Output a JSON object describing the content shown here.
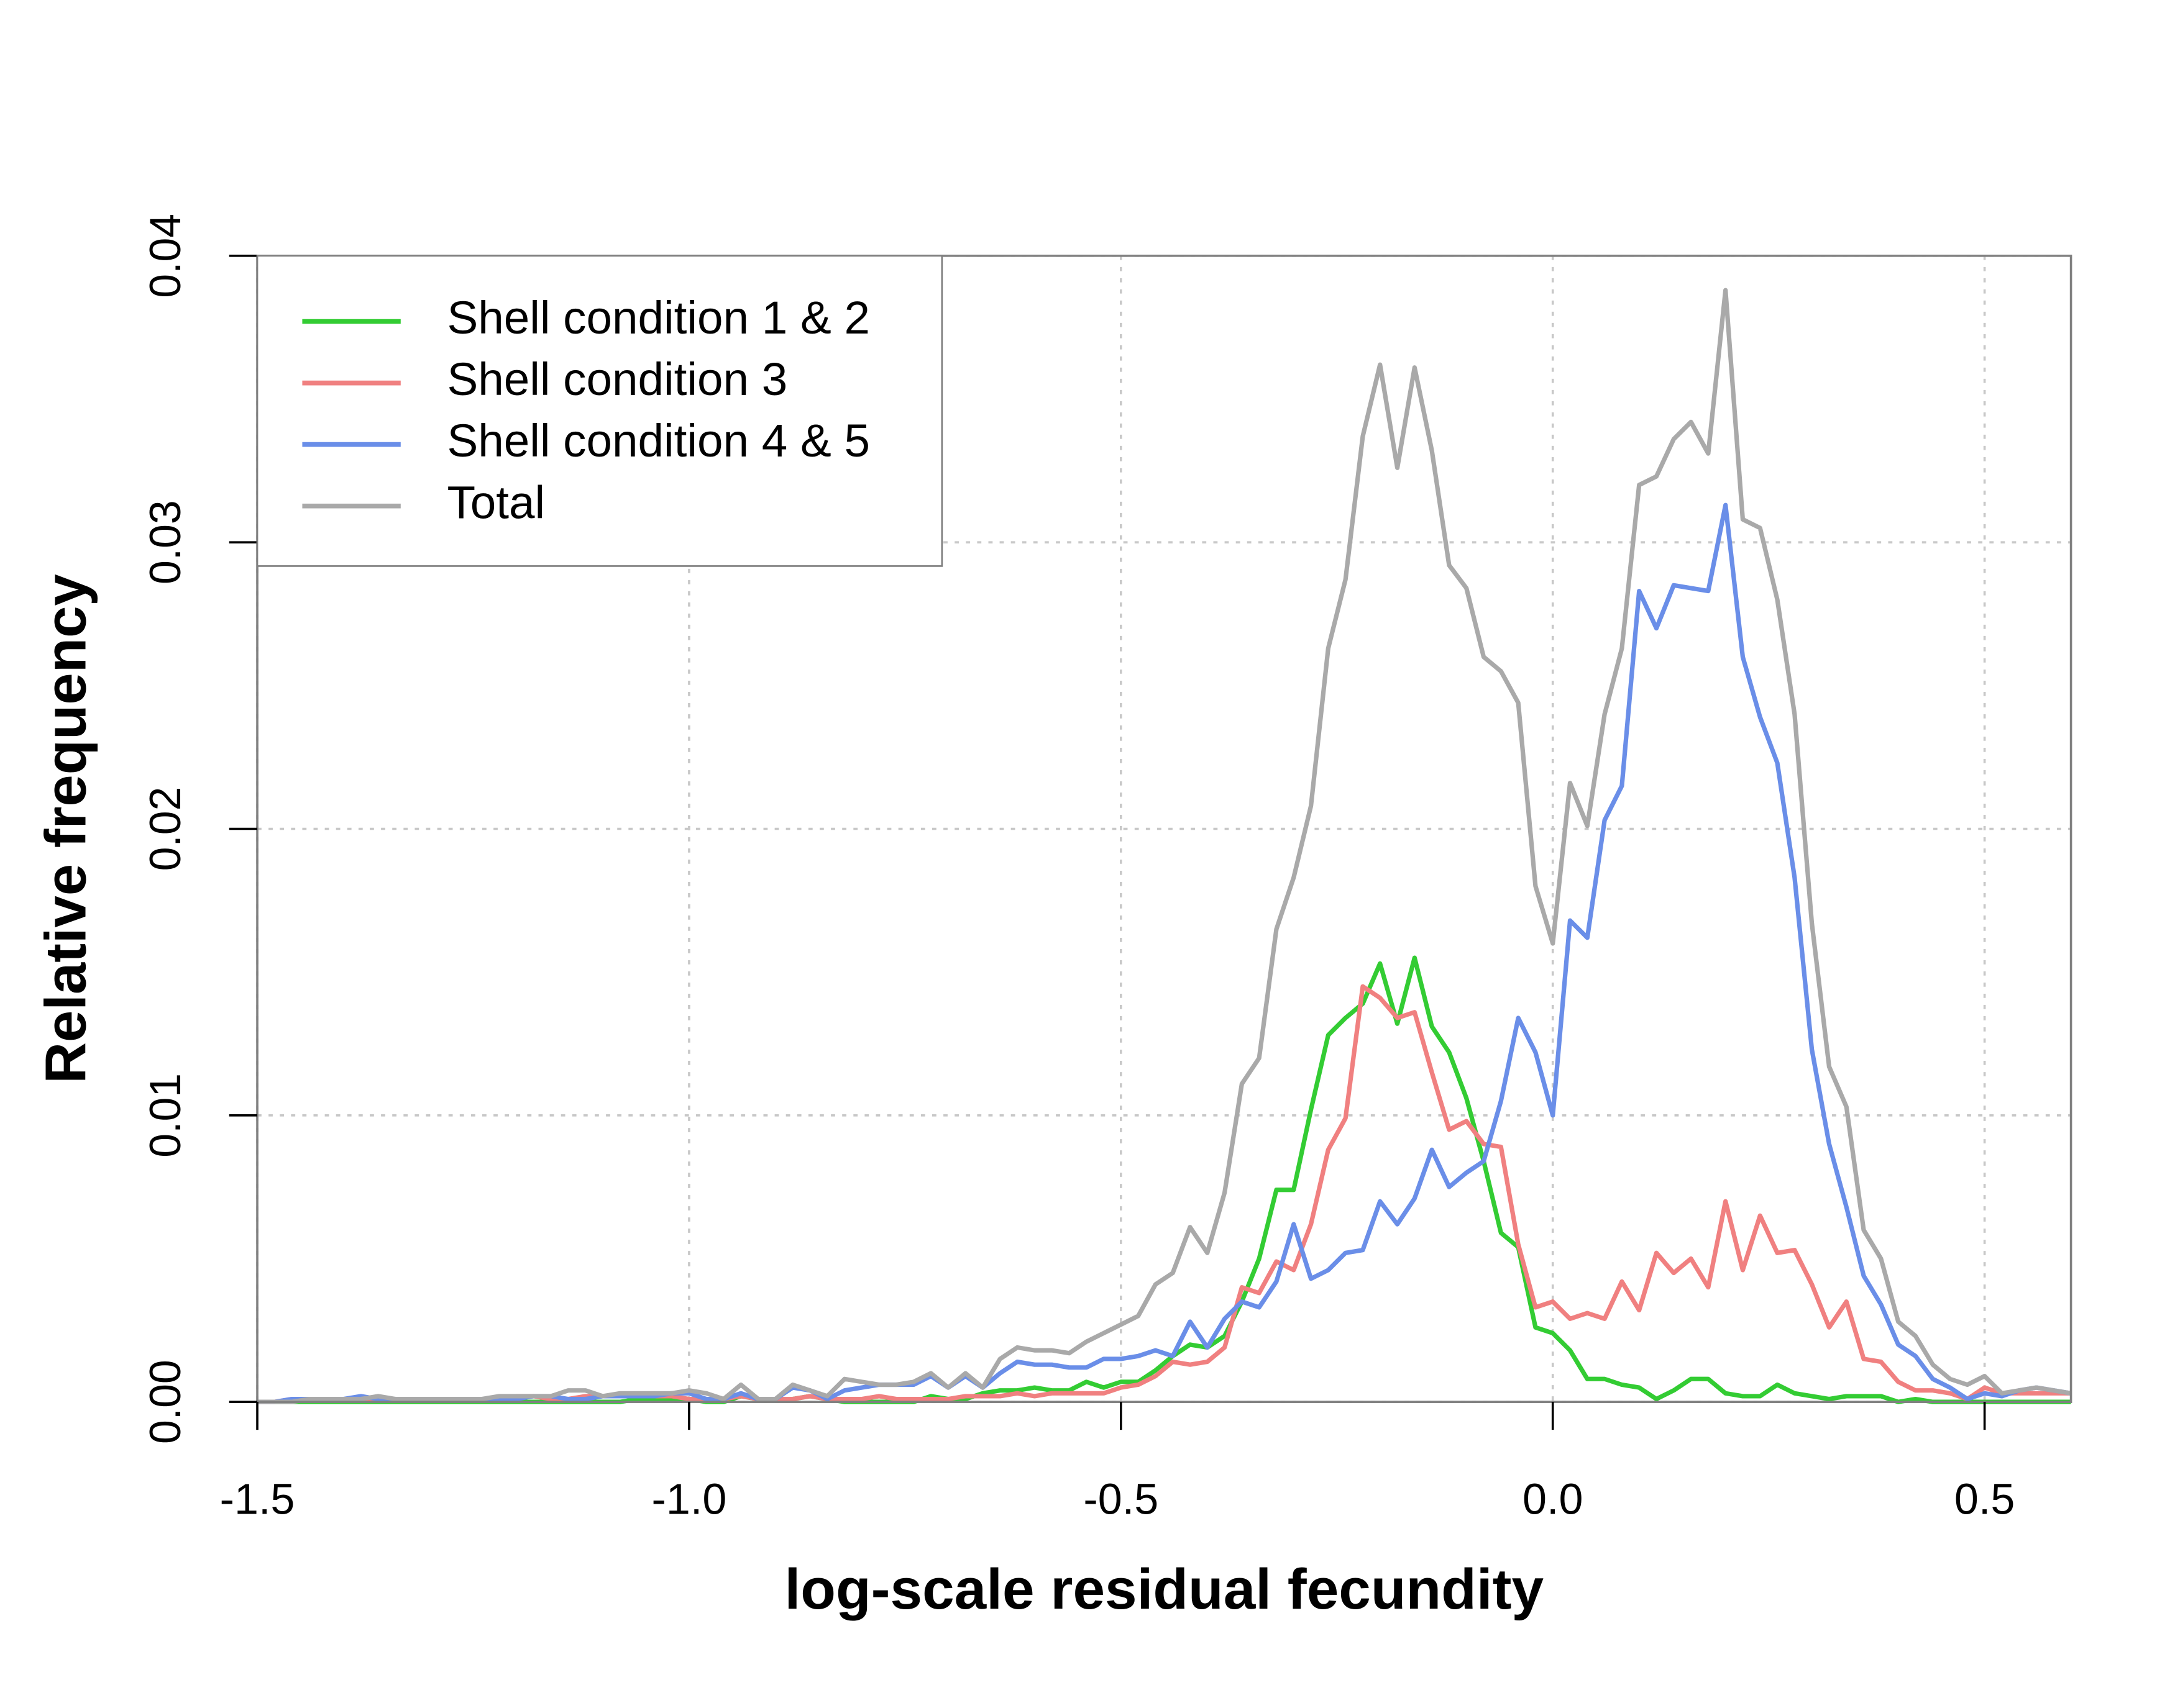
{
  "chart_data": {
    "type": "line",
    "xlabel": "log-scale residual fecundity",
    "ylabel": "Relative frequency",
    "xlim": [
      -1.5,
      0.6
    ],
    "ylim": [
      0,
      0.04
    ],
    "xticks": [
      -1.5,
      {
        "value": -1.0,
        "label": "-1.0"
      },
      -0.5,
      {
        "value": 0.0,
        "label": "0.0"
      },
      0.5
    ],
    "yticks": [
      {
        "value": 0,
        "label": "0.00"
      },
      {
        "value": 0.01,
        "label": "0.01"
      },
      {
        "value": 0.02,
        "label": "0.02"
      },
      {
        "value": 0.03,
        "label": "0.03"
      },
      {
        "value": 0.04,
        "label": "0.04"
      }
    ],
    "grid": true,
    "legend": "top-left",
    "x": [
      -1.5,
      -1.48,
      -1.46,
      -1.44,
      -1.42,
      -1.4,
      -1.38,
      -1.36,
      -1.34,
      -1.32,
      -1.3,
      -1.28,
      -1.26,
      -1.24,
      -1.22,
      -1.2,
      -1.18,
      -1.16,
      -1.14,
      -1.12,
      -1.1,
      -1.08,
      -1.06,
      -1.04,
      -1.02,
      -1.0,
      -0.98,
      -0.96,
      -0.94,
      -0.92,
      -0.9,
      -0.88,
      -0.86,
      -0.84,
      -0.82,
      -0.8,
      -0.78,
      -0.76,
      -0.74,
      -0.72,
      -0.7,
      -0.68,
      -0.66,
      -0.64,
      -0.62,
      -0.6,
      -0.58,
      -0.56,
      -0.54,
      -0.52,
      -0.5,
      -0.48,
      -0.46,
      -0.44,
      -0.42,
      -0.4,
      -0.38,
      -0.36,
      -0.34,
      -0.32,
      -0.3,
      -0.28,
      -0.26,
      -0.24,
      -0.22,
      -0.2,
      -0.18,
      -0.16,
      -0.14,
      -0.12,
      -0.1,
      -0.08,
      -0.06,
      -0.04,
      -0.02,
      0.0,
      0.02,
      0.04,
      0.06,
      0.08,
      0.1,
      0.12,
      0.14,
      0.16,
      0.18,
      0.2,
      0.22,
      0.24,
      0.26,
      0.28,
      0.3,
      0.32,
      0.34,
      0.36,
      0.38,
      0.4,
      0.42,
      0.44,
      0.46,
      0.48,
      0.5,
      0.52,
      0.54,
      0.56,
      0.58,
      0.6
    ],
    "series": [
      {
        "name": "Shell condition 1 & 2",
        "color": "#33cc33",
        "values": [
          0,
          0,
          0,
          0,
          0,
          0,
          0,
          0,
          0,
          0,
          0,
          0,
          0,
          0,
          0,
          0,
          0,
          0,
          0,
          0,
          0,
          0,
          0.0001,
          0.0001,
          0.0001,
          0.0001,
          0,
          0,
          0.0002,
          0.0001,
          0.0001,
          0.0001,
          0.0002,
          0.0001,
          0,
          0,
          0,
          0,
          0,
          0.0002,
          0.0001,
          0.0001,
          0.0003,
          0.0004,
          0.0004,
          0.0005,
          0.0004,
          0.0004,
          0.0007,
          0.0005,
          0.0007,
          0.0007,
          0.0011,
          0.0016,
          0.002,
          0.0019,
          0.0023,
          0.0035,
          0.005,
          0.0074,
          0.0074,
          0.0102,
          0.0128,
          0.0134,
          0.0139,
          0.0153,
          0.0132,
          0.0155,
          0.0131,
          0.0122,
          0.0106,
          0.0084,
          0.0059,
          0.0054,
          0.0026,
          0.0024,
          0.0018,
          0.0008,
          0.0008,
          0.0006,
          0.0005,
          0.0001,
          0.0004,
          0.0008,
          0.0008,
          0.0003,
          0.0002,
          0.0002,
          0.0006,
          0.0003,
          0.0002,
          0.0001,
          0.0002,
          0.0002,
          0.0002,
          0,
          0.0001,
          0,
          0,
          0,
          0,
          0,
          0,
          0,
          0,
          0
        ]
      },
      {
        "name": "Shell condition 3",
        "color": "#f08080",
        "values": [
          0,
          0,
          0.0001,
          0.0001,
          0.0001,
          0.0001,
          0.0001,
          0.0001,
          0.0001,
          0.0001,
          0.0001,
          0.0001,
          0.0001,
          0.0001,
          0.0001,
          0.0002,
          0.0002,
          0.0001,
          0.0001,
          0.0002,
          0.0002,
          0.0002,
          0.0002,
          0.0002,
          0.0002,
          0.0001,
          0.0001,
          0.0001,
          0.0002,
          0.0001,
          0.0001,
          0.0001,
          0.0002,
          0.0001,
          0.0001,
          0.0001,
          0.0002,
          0.0001,
          0.0001,
          0.0001,
          0.0001,
          0.0002,
          0.0002,
          0.0002,
          0.0003,
          0.0002,
          0.0003,
          0.0003,
          0.0003,
          0.0003,
          0.0005,
          0.0006,
          0.0009,
          0.0014,
          0.0013,
          0.0014,
          0.0019,
          0.004,
          0.0038,
          0.0049,
          0.0046,
          0.0062,
          0.0088,
          0.0099,
          0.0145,
          0.0141,
          0.0134,
          0.0136,
          0.0115,
          0.0095,
          0.0098,
          0.009,
          0.0089,
          0.0055,
          0.0033,
          0.0035,
          0.0029,
          0.0031,
          0.0029,
          0.0042,
          0.0032,
          0.0052,
          0.0045,
          0.005,
          0.004,
          0.007,
          0.0046,
          0.0065,
          0.0052,
          0.0053,
          0.0041,
          0.0026,
          0.0035,
          0.0015,
          0.0014,
          0.0007,
          0.0004,
          0.0004,
          0.0003,
          0.0001,
          0.0005,
          0.0003,
          0.0003,
          0.0003,
          0.0003,
          0.0003
        ]
      },
      {
        "name": "Shell condition 4 & 5",
        "color": "#6a8ee8",
        "values": [
          0,
          0,
          0.0001,
          0.0001,
          0.0001,
          0.0001,
          0.0002,
          0.0001,
          0.0001,
          0.0001,
          0.0001,
          0.0001,
          0.0001,
          0.0001,
          0.0001,
          0.0001,
          0.0002,
          0.0002,
          0.0001,
          0.0001,
          0.0002,
          0.0002,
          0.0002,
          0.0002,
          0.0003,
          0.0003,
          0.0001,
          0.0001,
          0.0003,
          0.0001,
          0.0001,
          0.0005,
          0.0004,
          0.0001,
          0.0004,
          0.0005,
          0.0006,
          0.0006,
          0.0006,
          0.0009,
          0.0005,
          0.0009,
          0.0005,
          0.001,
          0.0014,
          0.0013,
          0.0013,
          0.0012,
          0.0012,
          0.0015,
          0.0015,
          0.0016,
          0.0018,
          0.0016,
          0.0028,
          0.0019,
          0.0029,
          0.0035,
          0.0033,
          0.0042,
          0.0062,
          0.0043,
          0.0046,
          0.0052,
          0.0053,
          0.007,
          0.0062,
          0.0071,
          0.0088,
          0.0075,
          0.008,
          0.0084,
          0.0105,
          0.0134,
          0.0122,
          0.01,
          0.0168,
          0.0162,
          0.0203,
          0.0215,
          0.0283,
          0.027,
          0.0285,
          0.0284,
          0.0283,
          0.0313,
          0.026,
          0.0239,
          0.0223,
          0.0183,
          0.0123,
          0.009,
          0.0068,
          0.0044,
          0.0034,
          0.002,
          0.0016,
          0.0008,
          0.0005,
          0.0001,
          0.0003,
          0.0002,
          0.0004,
          0.0005,
          0.0004,
          0.0003
        ]
      },
      {
        "name": "Total",
        "color": "#a9a9a9",
        "values": [
          0,
          0,
          0,
          0.0001,
          0.0001,
          0.0001,
          0.0001,
          0.0002,
          0.0001,
          0.0001,
          0.0001,
          0.0001,
          0.0001,
          0.0001,
          0.0002,
          0.0002,
          0.0002,
          0.0002,
          0.0004,
          0.0004,
          0.0002,
          0.0003,
          0.0003,
          0.0003,
          0.0003,
          0.0004,
          0.0003,
          0.0001,
          0.0006,
          0.0001,
          0.0001,
          0.0006,
          0.0004,
          0.0002,
          0.0008,
          0.0007,
          0.0006,
          0.0006,
          0.0007,
          0.001,
          0.0005,
          0.001,
          0.0005,
          0.0015,
          0.0019,
          0.0018,
          0.0018,
          0.0017,
          0.0021,
          0.0024,
          0.0027,
          0.003,
          0.0041,
          0.0045,
          0.0061,
          0.0052,
          0.0073,
          0.0111,
          0.012,
          0.0165,
          0.0183,
          0.0208,
          0.0263,
          0.0287,
          0.0337,
          0.0362,
          0.0326,
          0.0361,
          0.0332,
          0.0292,
          0.0284,
          0.026,
          0.0255,
          0.0244,
          0.018,
          0.016,
          0.0216,
          0.0201,
          0.024,
          0.0263,
          0.032,
          0.0323,
          0.0336,
          0.0342,
          0.0331,
          0.0388,
          0.0308,
          0.0305,
          0.028,
          0.024,
          0.0167,
          0.0117,
          0.0103,
          0.006,
          0.005,
          0.0028,
          0.0023,
          0.0013,
          0.0008,
          0.0006,
          0.0009,
          0.0003,
          0.0004,
          0.0005,
          0.0004,
          0.0003
        ]
      }
    ]
  }
}
